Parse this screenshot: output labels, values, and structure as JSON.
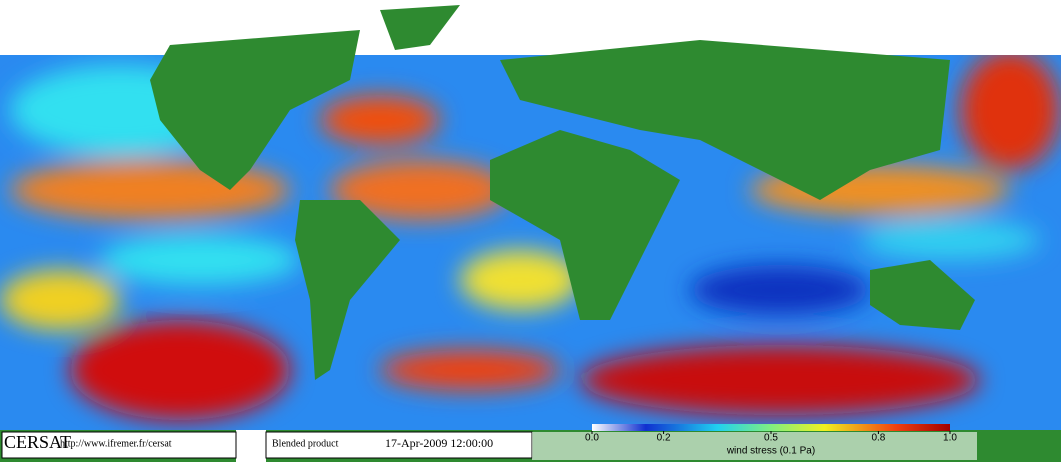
{
  "footer": {
    "logo": "CERSAT",
    "url": "http://www.ifremer.fr/cersat",
    "product": "Blended product",
    "date": "17-Apr-2009 12:00:00"
  },
  "colorbar": {
    "label": "wind stress (0.1 Pa)",
    "lim": [
      0,
      1
    ],
    "ticks": [
      {
        "value": 0,
        "label": "0.0"
      },
      0.2,
      0.5,
      0.8,
      {
        "value": 1,
        "label": "1.0"
      }
    ]
  }
}
